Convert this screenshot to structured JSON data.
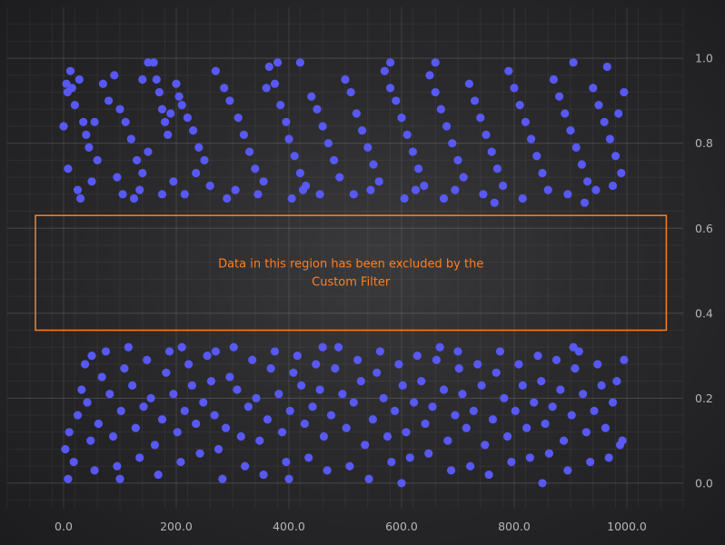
{
  "chart_data": {
    "type": "scatter",
    "title": "",
    "xlabel": "",
    "ylabel": "",
    "xlim": [
      -100,
      1100
    ],
    "ylim": [
      -0.06,
      1.12
    ],
    "x_ticks": [
      0,
      200,
      400,
      600,
      800,
      1000
    ],
    "x_tick_labels": [
      "0.0",
      "200.0",
      "400.0",
      "600.0",
      "800.0",
      "1000.0"
    ],
    "y_ticks": [
      0,
      0.2,
      0.4,
      0.6,
      0.8,
      1.0
    ],
    "y_tick_labels": [
      "0.0",
      "0.2",
      "0.4",
      "0.6",
      "0.8",
      "1.0"
    ],
    "y_axis_position": "right",
    "grid": true,
    "point_color": "#5b5bff",
    "annotation_color": "#ff7e1f",
    "excluded_region": {
      "x_range": [
        -50,
        1070
      ],
      "y_range": [
        0.36,
        0.63
      ],
      "label_line1": "Data in this region has been excluded by the",
      "label_line2": "Custom Filter"
    },
    "series": [
      {
        "points": [
          [
            0,
            0.84
          ],
          [
            5,
            0.94
          ],
          [
            7,
            0.92
          ],
          [
            12,
            0.97
          ],
          [
            15,
            0.93
          ],
          [
            20,
            0.89
          ],
          [
            28,
            0.95
          ],
          [
            35,
            0.85
          ],
          [
            40,
            0.82
          ],
          [
            45,
            0.79
          ],
          [
            55,
            0.85
          ],
          [
            60,
            0.76
          ],
          [
            8,
            0.74
          ],
          [
            25,
            0.69
          ],
          [
            30,
            0.67
          ],
          [
            50,
            0.71
          ],
          [
            70,
            0.94
          ],
          [
            80,
            0.9
          ],
          [
            90,
            0.96
          ],
          [
            100,
            0.88
          ],
          [
            110,
            0.85
          ],
          [
            120,
            0.81
          ],
          [
            130,
            0.76
          ],
          [
            140,
            0.73
          ],
          [
            150,
            0.78
          ],
          [
            95,
            0.72
          ],
          [
            105,
            0.68
          ],
          [
            125,
            0.67
          ],
          [
            135,
            0.69
          ],
          [
            160,
            0.99
          ],
          [
            165,
            0.95
          ],
          [
            170,
            0.92
          ],
          [
            175,
            0.88
          ],
          [
            180,
            0.85
          ],
          [
            185,
            0.82
          ],
          [
            190,
            0.87
          ],
          [
            200,
            0.94
          ],
          [
            205,
            0.91
          ],
          [
            210,
            0.89
          ],
          [
            220,
            0.86
          ],
          [
            230,
            0.83
          ],
          [
            240,
            0.79
          ],
          [
            250,
            0.76
          ],
          [
            175,
            0.68
          ],
          [
            195,
            0.71
          ],
          [
            215,
            0.68
          ],
          [
            235,
            0.73
          ],
          [
            260,
            0.7
          ],
          [
            270,
            0.97
          ],
          [
            285,
            0.93
          ],
          [
            295,
            0.9
          ],
          [
            310,
            0.86
          ],
          [
            320,
            0.82
          ],
          [
            330,
            0.78
          ],
          [
            340,
            0.74
          ],
          [
            355,
            0.71
          ],
          [
            290,
            0.67
          ],
          [
            305,
            0.69
          ],
          [
            345,
            0.68
          ],
          [
            150,
            0.99
          ],
          [
            140,
            0.95
          ],
          [
            365,
            0.98
          ],
          [
            375,
            0.94
          ],
          [
            385,
            0.89
          ],
          [
            395,
            0.85
          ],
          [
            400,
            0.81
          ],
          [
            410,
            0.77
          ],
          [
            420,
            0.73
          ],
          [
            430,
            0.7
          ],
          [
            440,
            0.91
          ],
          [
            450,
            0.88
          ],
          [
            460,
            0.84
          ],
          [
            470,
            0.8
          ],
          [
            480,
            0.76
          ],
          [
            490,
            0.72
          ],
          [
            405,
            0.67
          ],
          [
            425,
            0.69
          ],
          [
            455,
            0.68
          ],
          [
            500,
            0.95
          ],
          [
            510,
            0.92
          ],
          [
            520,
            0.87
          ],
          [
            530,
            0.83
          ],
          [
            540,
            0.79
          ],
          [
            550,
            0.75
          ],
          [
            560,
            0.71
          ],
          [
            515,
            0.68
          ],
          [
            545,
            0.69
          ],
          [
            360,
            0.93
          ],
          [
            380,
            0.99
          ],
          [
            420,
            0.99
          ],
          [
            570,
            0.97
          ],
          [
            580,
            0.93
          ],
          [
            590,
            0.9
          ],
          [
            600,
            0.86
          ],
          [
            610,
            0.82
          ],
          [
            620,
            0.78
          ],
          [
            630,
            0.74
          ],
          [
            640,
            0.7
          ],
          [
            605,
            0.67
          ],
          [
            625,
            0.69
          ],
          [
            650,
            0.96
          ],
          [
            660,
            0.92
          ],
          [
            670,
            0.88
          ],
          [
            680,
            0.84
          ],
          [
            690,
            0.8
          ],
          [
            700,
            0.76
          ],
          [
            710,
            0.72
          ],
          [
            675,
            0.67
          ],
          [
            695,
            0.69
          ],
          [
            720,
            0.94
          ],
          [
            730,
            0.9
          ],
          [
            740,
            0.86
          ],
          [
            750,
            0.82
          ],
          [
            760,
            0.78
          ],
          [
            770,
            0.74
          ],
          [
            780,
            0.7
          ],
          [
            745,
            0.68
          ],
          [
            765,
            0.66
          ],
          [
            580,
            0.99
          ],
          [
            660,
            0.99
          ],
          [
            790,
            0.97
          ],
          [
            800,
            0.93
          ],
          [
            810,
            0.89
          ],
          [
            820,
            0.85
          ],
          [
            830,
            0.81
          ],
          [
            840,
            0.77
          ],
          [
            850,
            0.73
          ],
          [
            860,
            0.69
          ],
          [
            815,
            0.67
          ],
          [
            870,
            0.95
          ],
          [
            880,
            0.91
          ],
          [
            890,
            0.87
          ],
          [
            900,
            0.83
          ],
          [
            910,
            0.79
          ],
          [
            920,
            0.75
          ],
          [
            930,
            0.71
          ],
          [
            895,
            0.68
          ],
          [
            925,
            0.66
          ],
          [
            940,
            0.93
          ],
          [
            950,
            0.89
          ],
          [
            960,
            0.85
          ],
          [
            970,
            0.81
          ],
          [
            980,
            0.77
          ],
          [
            990,
            0.73
          ],
          [
            995,
            0.92
          ],
          [
            985,
            0.87
          ],
          [
            965,
            0.98
          ],
          [
            945,
            0.69
          ],
          [
            975,
            0.7
          ],
          [
            905,
            0.99
          ],
          [
            3,
            0.08
          ],
          [
            10,
            0.12
          ],
          [
            18,
            0.05
          ],
          [
            25,
            0.16
          ],
          [
            32,
            0.22
          ],
          [
            38,
            0.28
          ],
          [
            42,
            0.19
          ],
          [
            48,
            0.1
          ],
          [
            55,
            0.03
          ],
          [
            62,
            0.14
          ],
          [
            68,
            0.25
          ],
          [
            75,
            0.31
          ],
          [
            82,
            0.21
          ],
          [
            88,
            0.11
          ],
          [
            95,
            0.04
          ],
          [
            102,
            0.17
          ],
          [
            108,
            0.27
          ],
          [
            115,
            0.32
          ],
          [
            122,
            0.23
          ],
          [
            128,
            0.13
          ],
          [
            135,
            0.06
          ],
          [
            142,
            0.18
          ],
          [
            148,
            0.29
          ],
          [
            155,
            0.2
          ],
          [
            162,
            0.09
          ],
          [
            168,
            0.02
          ],
          [
            8,
            0.01
          ],
          [
            50,
            0.3
          ],
          [
            100,
            0.01
          ],
          [
            175,
            0.15
          ],
          [
            182,
            0.26
          ],
          [
            188,
            0.31
          ],
          [
            195,
            0.21
          ],
          [
            202,
            0.12
          ],
          [
            208,
            0.05
          ],
          [
            215,
            0.17
          ],
          [
            222,
            0.28
          ],
          [
            228,
            0.23
          ],
          [
            235,
            0.14
          ],
          [
            242,
            0.07
          ],
          [
            248,
            0.19
          ],
          [
            255,
            0.3
          ],
          [
            262,
            0.24
          ],
          [
            268,
            0.16
          ],
          [
            275,
            0.08
          ],
          [
            282,
            0.01
          ],
          [
            288,
            0.13
          ],
          [
            295,
            0.25
          ],
          [
            302,
            0.32
          ],
          [
            308,
            0.22
          ],
          [
            315,
            0.11
          ],
          [
            322,
            0.04
          ],
          [
            328,
            0.18
          ],
          [
            335,
            0.29
          ],
          [
            342,
            0.2
          ],
          [
            348,
            0.1
          ],
          [
            355,
            0.02
          ],
          [
            210,
            0.32
          ],
          [
            270,
            0.31
          ],
          [
            362,
            0.15
          ],
          [
            368,
            0.27
          ],
          [
            375,
            0.31
          ],
          [
            382,
            0.21
          ],
          [
            388,
            0.12
          ],
          [
            395,
            0.05
          ],
          [
            402,
            0.17
          ],
          [
            408,
            0.26
          ],
          [
            415,
            0.3
          ],
          [
            422,
            0.23
          ],
          [
            428,
            0.14
          ],
          [
            435,
            0.06
          ],
          [
            442,
            0.18
          ],
          [
            448,
            0.28
          ],
          [
            455,
            0.22
          ],
          [
            462,
            0.11
          ],
          [
            468,
            0.03
          ],
          [
            475,
            0.16
          ],
          [
            482,
            0.27
          ],
          [
            488,
            0.32
          ],
          [
            495,
            0.21
          ],
          [
            502,
            0.13
          ],
          [
            508,
            0.04
          ],
          [
            515,
            0.19
          ],
          [
            522,
            0.29
          ],
          [
            528,
            0.24
          ],
          [
            535,
            0.09
          ],
          [
            542,
            0.01
          ],
          [
            549,
            0.15
          ],
          [
            556,
            0.26
          ],
          [
            400,
            0.01
          ],
          [
            460,
            0.32
          ],
          [
            562,
            0.31
          ],
          [
            568,
            0.2
          ],
          [
            575,
            0.11
          ],
          [
            582,
            0.05
          ],
          [
            588,
            0.17
          ],
          [
            595,
            0.28
          ],
          [
            602,
            0.23
          ],
          [
            608,
            0.12
          ],
          [
            615,
            0.06
          ],
          [
            622,
            0.19
          ],
          [
            628,
            0.3
          ],
          [
            635,
            0.24
          ],
          [
            642,
            0.14
          ],
          [
            648,
            0.07
          ],
          [
            655,
            0.18
          ],
          [
            662,
            0.29
          ],
          [
            668,
            0.32
          ],
          [
            675,
            0.22
          ],
          [
            682,
            0.1
          ],
          [
            688,
            0.03
          ],
          [
            695,
            0.16
          ],
          [
            702,
            0.27
          ],
          [
            708,
            0.21
          ],
          [
            715,
            0.13
          ],
          [
            722,
            0.04
          ],
          [
            728,
            0.17
          ],
          [
            735,
            0.28
          ],
          [
            742,
            0.23
          ],
          [
            748,
            0.09
          ],
          [
            755,
            0.02
          ],
          [
            600,
            0.0
          ],
          [
            700,
            0.31
          ],
          [
            762,
            0.15
          ],
          [
            768,
            0.26
          ],
          [
            775,
            0.31
          ],
          [
            782,
            0.2
          ],
          [
            788,
            0.11
          ],
          [
            795,
            0.05
          ],
          [
            802,
            0.17
          ],
          [
            808,
            0.28
          ],
          [
            815,
            0.23
          ],
          [
            822,
            0.13
          ],
          [
            828,
            0.06
          ],
          [
            835,
            0.19
          ],
          [
            842,
            0.3
          ],
          [
            848,
            0.24
          ],
          [
            855,
            0.14
          ],
          [
            862,
            0.07
          ],
          [
            868,
            0.18
          ],
          [
            875,
            0.29
          ],
          [
            882,
            0.22
          ],
          [
            888,
            0.1
          ],
          [
            895,
            0.03
          ],
          [
            902,
            0.16
          ],
          [
            908,
            0.27
          ],
          [
            915,
            0.31
          ],
          [
            922,
            0.21
          ],
          [
            928,
            0.12
          ],
          [
            935,
            0.05
          ],
          [
            942,
            0.17
          ],
          [
            948,
            0.28
          ],
          [
            955,
            0.23
          ],
          [
            962,
            0.13
          ],
          [
            968,
            0.06
          ],
          [
            975,
            0.19
          ],
          [
            982,
            0.24
          ],
          [
            988,
            0.09
          ],
          [
            995,
            0.29
          ],
          [
            992,
            0.1
          ],
          [
            905,
            0.32
          ],
          [
            850,
            0.0
          ]
        ]
      }
    ]
  }
}
